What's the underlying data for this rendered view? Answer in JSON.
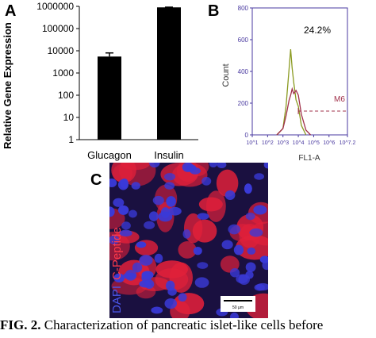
{
  "panels": {
    "a": {
      "letter": "A",
      "chart_data": {
        "type": "bar",
        "scale": "log",
        "categories": [
          "Glucagon",
          "Insulin"
        ],
        "values": [
          5500,
          900000
        ],
        "error": [
          8000,
          920000
        ],
        "ylabel": "Relative Gene Expression",
        "ylim": [
          1,
          1000000
        ],
        "yticks": [
          "1",
          "10",
          "100",
          "1000",
          "10000",
          "100000",
          "1000000"
        ],
        "bar_color": "#000000"
      }
    },
    "b": {
      "letter": "B",
      "chart_data": {
        "type": "line",
        "xlabel": "FL1-A",
        "ylabel": "Count",
        "ylim": [
          0,
          800
        ],
        "yticks": [
          "0",
          "200",
          "400",
          "600",
          "800"
        ],
        "xticks": [
          "10^1",
          "10^2",
          "10^3",
          "10^4",
          "10^5",
          "10^6",
          "10^7.2"
        ],
        "percent_label": "24.2%",
        "gate_label": "M6",
        "series": [
          {
            "color": "#8a9a20",
            "x": [
              2.6,
              3.0,
              3.2,
              3.4,
              3.5,
              3.6,
              3.7,
              3.85,
              4.0,
              4.2,
              4.5
            ],
            "y": [
              0,
              40,
              180,
              420,
              540,
              420,
              330,
              220,
              180,
              60,
              0
            ]
          },
          {
            "color": "#a0304a",
            "x": [
              2.6,
              3.0,
              3.2,
              3.4,
              3.5,
              3.6,
              3.7,
              3.85,
              4.0,
              4.2,
              4.5,
              4.8
            ],
            "y": [
              0,
              40,
              120,
              220,
              250,
              290,
              260,
              280,
              250,
              130,
              30,
              0
            ]
          }
        ],
        "gate": {
          "x_start": 4.0,
          "x_end": 7.2,
          "y": 150,
          "color": "#a0304a"
        }
      }
    },
    "c": {
      "letter": "C",
      "side_label_1": "DAPI",
      "side_label_2": "C-Peptide",
      "scale_bar_label": "50 µm",
      "colors": {
        "background": "#1a1040",
        "dapi": "#3a3ad8",
        "cpeptide": "#e0203a"
      }
    }
  },
  "caption": {
    "lead": "FIG. 2.",
    "text": " Characterization of pancreatic islet-like cells before"
  }
}
